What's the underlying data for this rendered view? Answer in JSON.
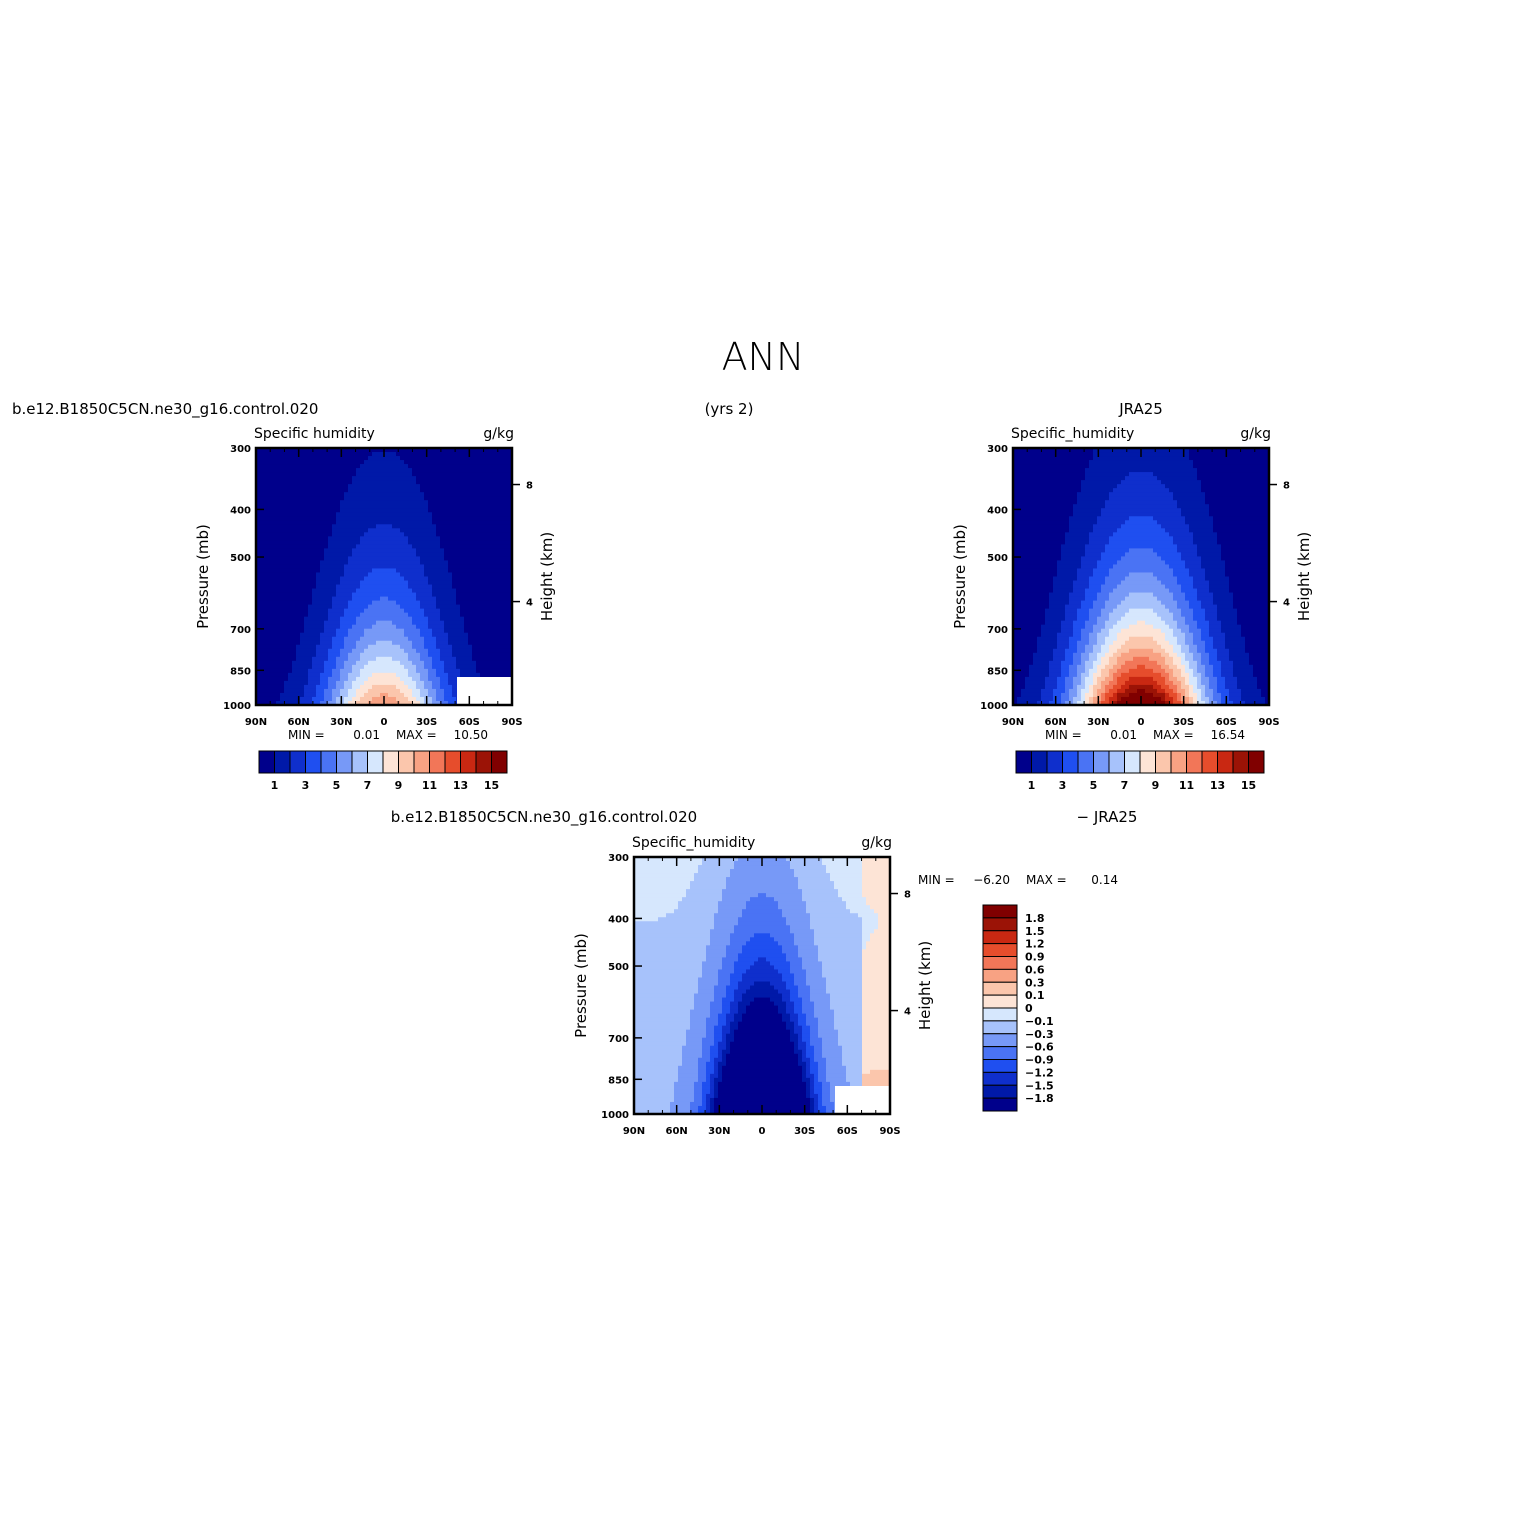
{
  "figure": {
    "title": "ANN",
    "case_label": "b.e12.B1850C5CN.ne30_g16.control.020",
    "years_label": "(yrs 2)",
    "ref_label": "JRA25",
    "diff_case_label": "b.e12.B1850C5CN.ne30_g16.control.020",
    "diff_ref_label": "− JRA25"
  },
  "colors": {
    "abs_scale": [
      "#00008b",
      "#0019a8",
      "#0f2fcc",
      "#1f4ff0",
      "#4a73f4",
      "#7799f7",
      "#a7c2fb",
      "#d6e7fd",
      "#fde4d6",
      "#fbc6ac",
      "#f8a283",
      "#f27658",
      "#e64d2c",
      "#c92812",
      "#9b1306",
      "#800000"
    ],
    "diff_scale": [
      "#00008b",
      "#0019a8",
      "#0f2fcc",
      "#1f4ff0",
      "#4a73f4",
      "#7799f7",
      "#a7c2fb",
      "#d6e7fd",
      "#fde4d6",
      "#fbc6ac",
      "#f8a283",
      "#f27658",
      "#e64d2c",
      "#c92812",
      "#9b1306",
      "#800000"
    ]
  },
  "chart_data": [
    {
      "type": "heatmap",
      "name": "model",
      "title": "Specific humidity",
      "units": "g/kg",
      "ylabel": "Pressure (mb)",
      "y2label": "Height (km)",
      "x_ticks": [
        "90N",
        "60N",
        "30N",
        "0",
        "30S",
        "60S",
        "90S"
      ],
      "y_ticks": [
        "300",
        "400",
        "500",
        "700",
        "850",
        "1000"
      ],
      "y2_ticks": [
        "8",
        "4"
      ],
      "min_label": "MIN =",
      "min_value": "0.01",
      "max_label": "MAX =",
      "max_value": "10.50",
      "colorbar_labels": [
        "1",
        "3",
        "5",
        "7",
        "9",
        "11",
        "13",
        "15"
      ],
      "levels": [
        1,
        2,
        3,
        4,
        5,
        6,
        7,
        8,
        9,
        10,
        11,
        12,
        13,
        14,
        15
      ],
      "peak_value": 10.5,
      "peak_lat": 0,
      "half_width_deg": 42,
      "scale_height": 0.42
    },
    {
      "type": "heatmap",
      "name": "reference",
      "title": "Specific_humidity",
      "units": "g/kg",
      "ylabel": "Pressure (mb)",
      "y2label": "Height (km)",
      "x_ticks": [
        "90N",
        "60N",
        "30N",
        "0",
        "30S",
        "60S",
        "90S"
      ],
      "y_ticks": [
        "300",
        "400",
        "500",
        "700",
        "850",
        "1000"
      ],
      "y2_ticks": [
        "8",
        "4"
      ],
      "min_label": "MIN =",
      "min_value": "0.01",
      "max_label": "MAX =",
      "max_value": "16.54",
      "colorbar_labels": [
        "1",
        "3",
        "5",
        "7",
        "9",
        "11",
        "13",
        "15"
      ],
      "levels": [
        1,
        2,
        3,
        4,
        5,
        6,
        7,
        8,
        9,
        10,
        11,
        12,
        13,
        14,
        15
      ],
      "peak_value": 16.54,
      "peak_lat": 0,
      "half_width_deg": 46,
      "scale_height": 0.43
    },
    {
      "type": "heatmap",
      "name": "difference",
      "title": "Specific_humidity",
      "units": "g/kg",
      "ylabel": "Pressure (mb)",
      "y2label": "Height (km)",
      "x_ticks": [
        "90N",
        "60N",
        "30N",
        "0",
        "30S",
        "60S",
        "90S"
      ],
      "y_ticks": [
        "300",
        "400",
        "500",
        "700",
        "850",
        "1000"
      ],
      "y2_ticks": [
        "8",
        "4"
      ],
      "min_label": "MIN =",
      "min_value": "−6.20",
      "max_label": "MAX =",
      "max_value": "0.14",
      "colorbar_labels": [
        "1.8",
        "1.5",
        "1.2",
        "0.9",
        "0.6",
        "0.3",
        "0.1",
        "0",
        "−0.1",
        "−0.3",
        "−0.6",
        "−0.9",
        "−1.2",
        "−1.5",
        "−1.8"
      ],
      "levels": [
        -1.8,
        -1.5,
        -1.2,
        -0.9,
        -0.6,
        -0.3,
        -0.1,
        0,
        0.1,
        0.3,
        0.6,
        0.9,
        1.2,
        1.5,
        1.8
      ],
      "min_numeric": -6.2,
      "max_numeric": 0.14
    }
  ]
}
